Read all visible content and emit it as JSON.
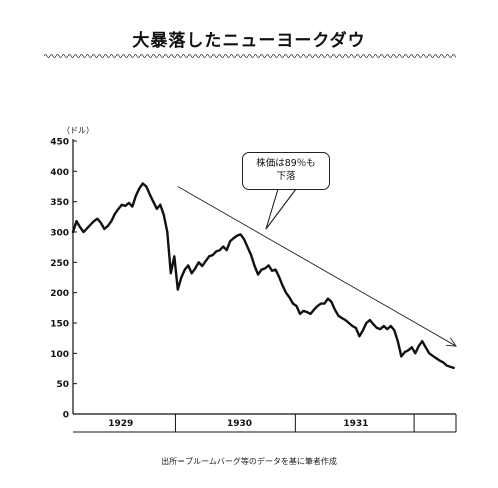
{
  "title": "大暴落したニューヨークダウ",
  "source": "出所＝ブルームバーグ等のデータを基に筆者作成",
  "callout": {
    "line1": "株価は89％も",
    "line2": "下落"
  },
  "chart_data": {
    "type": "line",
    "title": "大暴落したニューヨークダウ",
    "ylabel": "（ドル）",
    "xlabel": "",
    "ylim": [
      0,
      450
    ],
    "yticks": [
      0,
      50,
      100,
      150,
      200,
      250,
      300,
      350,
      400,
      450
    ],
    "xlim": [
      1928.57,
      1931.86
    ],
    "xtick_labels": [
      {
        "label": "1929",
        "pos": 1928.98
      },
      {
        "label": "1930",
        "pos": 1930.0
      },
      {
        "label": "1931",
        "pos": 1931.0
      }
    ],
    "year_dividers": [
      1929.45,
      1930.48,
      1931.5
    ],
    "grid": false,
    "series": [
      {
        "color": "#111111",
        "x": [
          1928.57,
          1928.6,
          1928.63,
          1928.66,
          1928.69,
          1928.72,
          1928.75,
          1928.78,
          1928.81,
          1928.84,
          1928.87,
          1928.9,
          1928.93,
          1928.96,
          1928.99,
          1929.02,
          1929.05,
          1929.08,
          1929.11,
          1929.14,
          1929.17,
          1929.2,
          1929.23,
          1929.26,
          1929.29,
          1929.32,
          1929.35,
          1929.38,
          1929.41,
          1929.44,
          1929.47,
          1929.5,
          1929.53,
          1929.56,
          1929.59,
          1929.62,
          1929.65,
          1929.68,
          1929.71,
          1929.74,
          1929.77,
          1929.8,
          1929.83,
          1929.86,
          1929.89,
          1929.92,
          1929.95,
          1929.98,
          1930.01,
          1930.04,
          1930.07,
          1930.1,
          1930.13,
          1930.16,
          1930.19,
          1930.22,
          1930.25,
          1930.28,
          1930.31,
          1930.34,
          1930.37,
          1930.4,
          1930.43,
          1930.46,
          1930.49,
          1930.52,
          1930.55,
          1930.58,
          1930.61,
          1930.64,
          1930.67,
          1930.7,
          1930.73,
          1930.76,
          1930.79,
          1930.82,
          1930.85,
          1930.88,
          1930.91,
          1930.94,
          1930.97,
          1931.0,
          1931.03,
          1931.06,
          1931.09,
          1931.12,
          1931.15,
          1931.18,
          1931.21,
          1931.24,
          1931.27,
          1931.3,
          1931.33,
          1931.36,
          1931.39,
          1931.42,
          1931.45,
          1931.48,
          1931.51,
          1931.54,
          1931.57,
          1931.6,
          1931.63,
          1931.66,
          1931.69,
          1931.72,
          1931.75,
          1931.78,
          1931.81,
          1931.84
        ],
        "y": [
          300,
          318,
          308,
          300,
          306,
          312,
          318,
          322,
          315,
          305,
          310,
          318,
          330,
          338,
          345,
          343,
          348,
          342,
          360,
          372,
          380,
          375,
          362,
          350,
          338,
          345,
          328,
          300,
          232,
          260,
          205,
          225,
          238,
          245,
          232,
          240,
          250,
          244,
          252,
          260,
          262,
          268,
          270,
          276,
          270,
          285,
          290,
          294,
          296,
          288,
          275,
          262,
          244,
          230,
          238,
          240,
          245,
          236,
          238,
          226,
          212,
          200,
          192,
          182,
          178,
          165,
          170,
          168,
          165,
          172,
          178,
          182,
          182,
          190,
          185,
          172,
          162,
          158,
          155,
          150,
          145,
          142,
          128,
          138,
          150,
          155,
          148,
          142,
          140,
          145,
          140,
          145,
          138,
          120,
          95,
          102,
          105,
          110,
          100,
          112,
          120,
          110,
          100,
          96,
          92,
          88,
          85,
          80,
          78,
          76
        ]
      }
    ],
    "trend_arrow": {
      "from": [
        1929.47,
        375
      ],
      "to": [
        1931.86,
        112
      ]
    }
  }
}
